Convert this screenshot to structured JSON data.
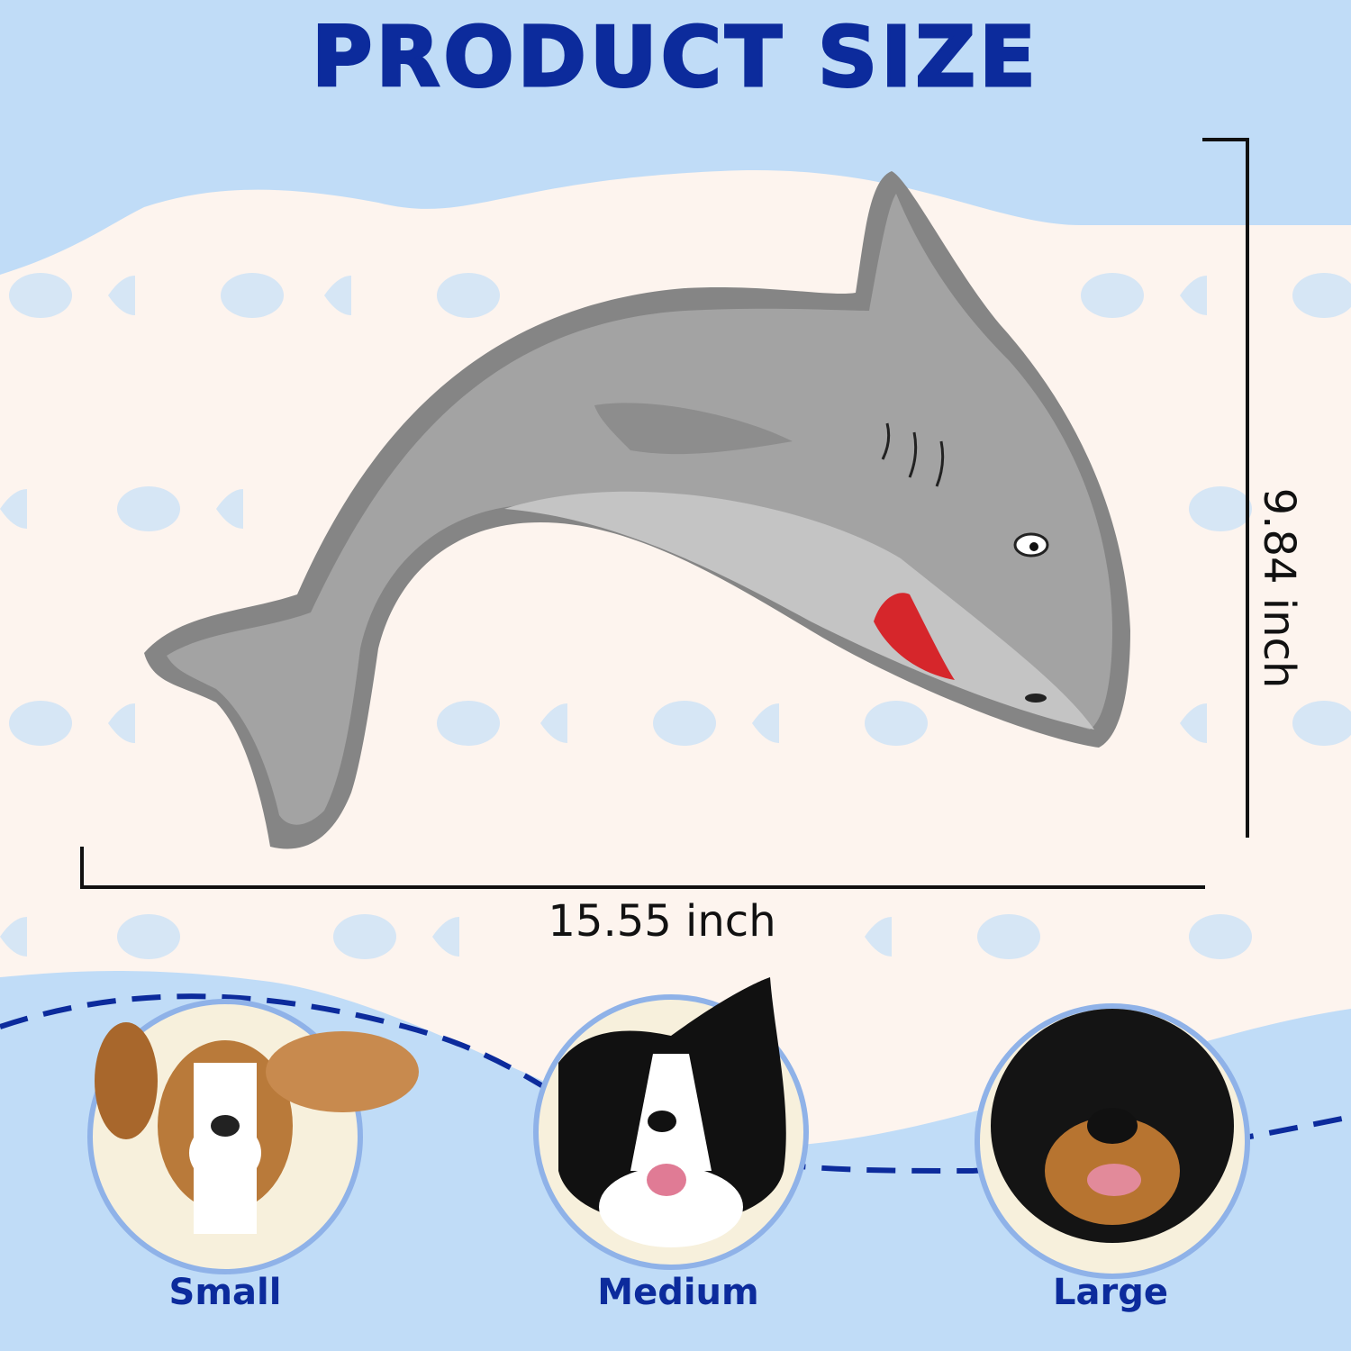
{
  "title": "PRODUCT SIZE",
  "dimensions": {
    "width": "15.55 inch",
    "height": "9.84 inch"
  },
  "dog_sizes": [
    {
      "label": "Small"
    },
    {
      "label": "Medium"
    },
    {
      "label": "Large"
    }
  ],
  "colors": {
    "title": "#0c2b9c",
    "sky": "#c0dcf7",
    "cream": "#fdf4ee",
    "fish": "#d6e6f5",
    "shark": "#8e8e8e"
  }
}
